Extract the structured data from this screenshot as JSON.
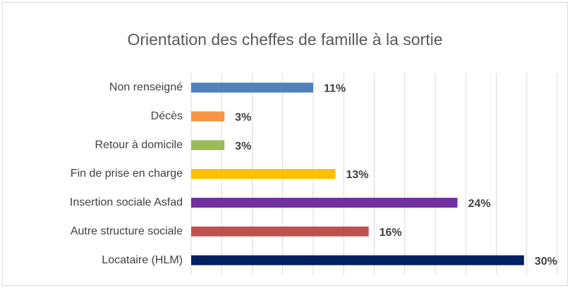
{
  "chart_data": {
    "type": "hbar",
    "title": "Orientation des cheffes de famille à la sortie",
    "categories": [
      "Non renseigné",
      "Décès",
      "Retour à domicile",
      "Fin de prise en charge",
      "Insertion sociale Asfad",
      "Autre structure sociale",
      "Locataire (HLM)"
    ],
    "values": [
      11,
      3,
      3,
      13,
      24,
      16,
      30
    ],
    "value_labels": [
      "11%",
      "3%",
      "3%",
      "13%",
      "24%",
      "16%",
      "30%"
    ],
    "colors": [
      "#4f81bd",
      "#f79646",
      "#9bbb59",
      "#ffc000",
      "#7030a0",
      "#c0504d",
      "#002060"
    ],
    "xlim": [
      0,
      33
    ],
    "xticks": [
      0,
      2.75,
      5.5,
      8.25,
      11,
      13.75,
      16.5,
      19.25,
      22,
      24.75,
      27.5,
      30.25,
      33
    ],
    "grid": true
  }
}
